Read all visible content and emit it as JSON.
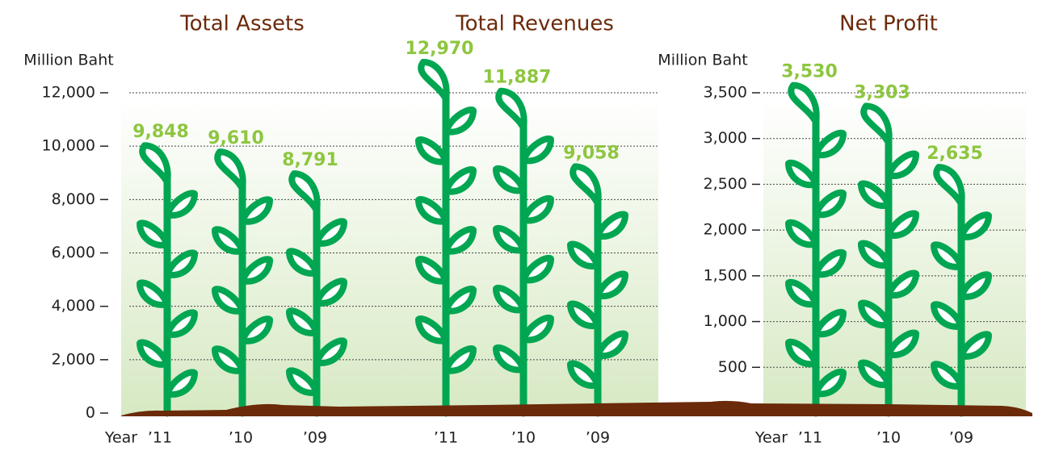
{
  "chart_data": [
    {
      "type": "plant-bar",
      "title": "Total Assets",
      "y_label": "Million Baht",
      "x_label": "Year",
      "categories": [
        "’11",
        "’10",
        "’09"
      ],
      "values": [
        9848,
        9610,
        8791
      ],
      "value_labels": [
        "9,848",
        "9,610",
        "8,791"
      ],
      "color": "#00a651",
      "label_color": "#8dc63f",
      "ylim": [
        0,
        12000
      ],
      "yticks": [
        0,
        {
          "value": 2000,
          "label": "2,000"
        },
        {
          "value": 4000,
          "label": "4,000"
        },
        {
          "value": 6000,
          "label": "6,000"
        },
        {
          "value": 8000,
          "label": "8,000"
        },
        {
          "value": 10000,
          "label": "10,000"
        },
        {
          "value": 12000,
          "label": "12,000"
        }
      ],
      "grid": true
    },
    {
      "type": "plant-bar",
      "title": "Total Revenues",
      "categories": [
        "’11",
        "’10",
        "’09"
      ],
      "values": [
        12970,
        11887,
        9058
      ],
      "value_labels": [
        "12,970",
        "11,887",
        "9,058"
      ],
      "color": "#00a651",
      "label_color": "#8dc63f",
      "ylim": [
        0,
        12000
      ]
    },
    {
      "type": "plant-bar",
      "title": "Net Profit",
      "y_label": "Million Baht",
      "x_label": "Year",
      "categories": [
        "’11",
        "’10",
        "’09"
      ],
      "values": [
        3530,
        3303,
        2635
      ],
      "value_labels": [
        "3,530",
        "3,303",
        "2,635"
      ],
      "color": "#00a651",
      "label_color": "#8dc63f",
      "ylim": [
        0,
        3500
      ],
      "yticks": [
        500,
        {
          "value": 1000,
          "label": "1,000"
        },
        {
          "value": 1500,
          "label": "1,500"
        },
        {
          "value": 2000,
          "label": "2,000"
        },
        {
          "value": 2500,
          "label": "2,500"
        },
        {
          "value": 3000,
          "label": "3,000"
        },
        {
          "value": 3500,
          "label": "3,500"
        }
      ],
      "grid": true
    }
  ]
}
